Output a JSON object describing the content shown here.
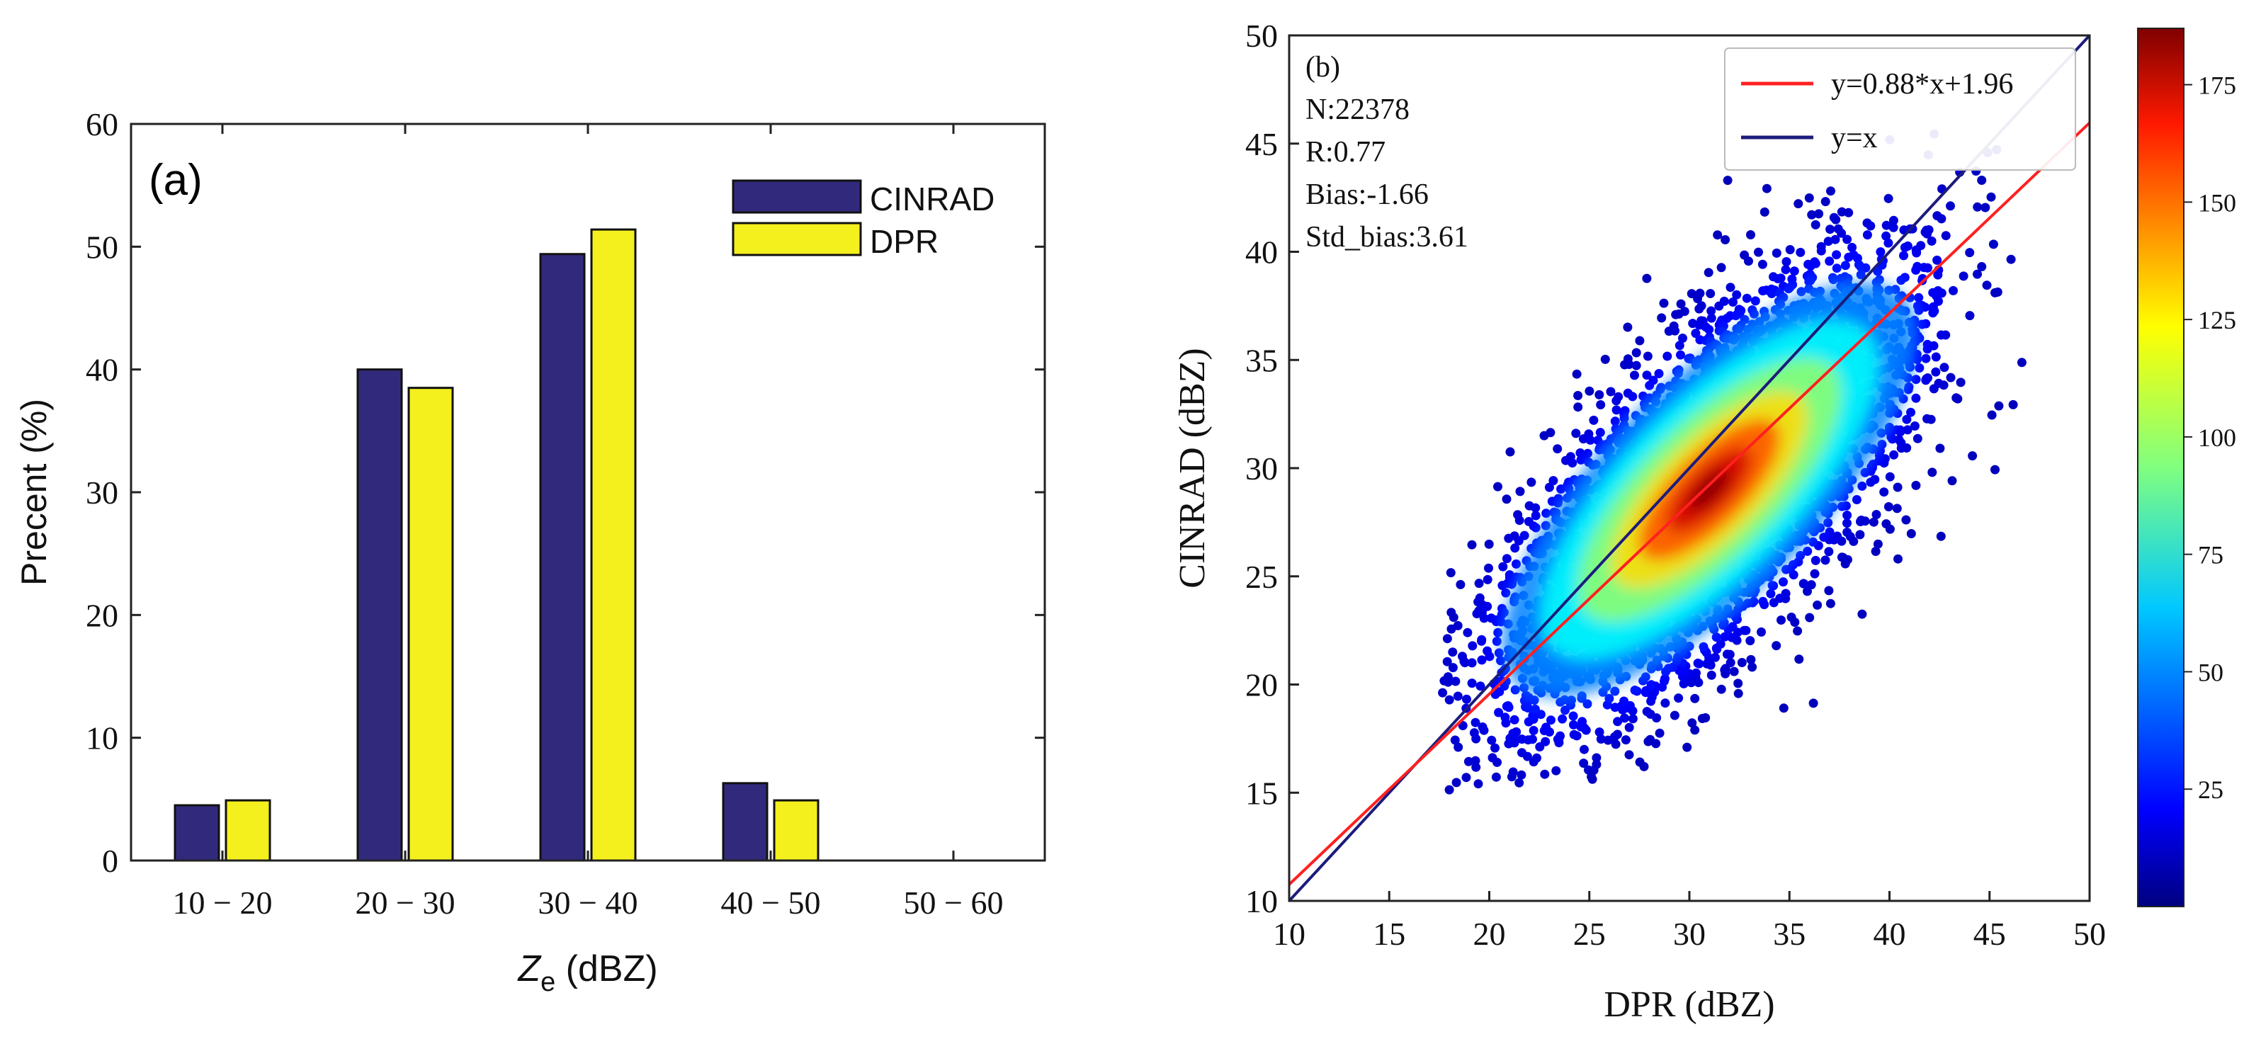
{
  "chart_data": [
    {
      "panel": "(a)",
      "type": "bar",
      "categories": [
        "10 − 20",
        "20 − 30",
        "30 − 40",
        "40 − 50",
        "50 − 60"
      ],
      "series": [
        {
          "name": "CINRAD",
          "color": "#312a7c",
          "values": [
            4.5,
            40.0,
            49.4,
            6.3,
            0.0
          ]
        },
        {
          "name": "DPR",
          "color": "#f4f01d",
          "values": [
            4.9,
            38.5,
            51.4,
            4.9,
            0.0
          ]
        }
      ],
      "xlabel_main": "Z",
      "xlabel_sub": "e",
      "xlabel_unit": " (dBZ)",
      "ylabel": "Precent (%)",
      "ylim": [
        0,
        60
      ],
      "yticks": [
        0,
        10,
        20,
        30,
        40,
        50,
        60
      ],
      "legend_position": "top-right"
    },
    {
      "panel": "(b)",
      "type": "scatter",
      "xlabel": "DPR (dBZ)",
      "ylabel": "CINRAD (dBZ)",
      "xlim": [
        10,
        50
      ],
      "ylim": [
        10,
        50
      ],
      "xticks": [
        10,
        15,
        20,
        25,
        30,
        35,
        40,
        45,
        50
      ],
      "yticks": [
        10,
        15,
        20,
        25,
        30,
        35,
        40,
        45,
        50
      ],
      "stats": [
        "N:22378",
        "R:0.77",
        "Bias:-1.66",
        "Std_bias:3.61"
      ],
      "fit_line": {
        "label": "y=0.88*x+1.96",
        "color": "#ff2020",
        "slope": 0.88,
        "intercept": 1.96
      },
      "identity_line": {
        "label": "y=x",
        "color": "#1c1c7c",
        "slope": 1,
        "intercept": 0
      },
      "density_cloud": {
        "center": [
          31,
          29
        ],
        "major_axis_slope": 1.0,
        "sd_major": 6.2,
        "sd_minor": 2.4,
        "x_min": 17.5,
        "y_min": 15
      },
      "colorbar": {
        "min": 0,
        "max": 187,
        "ticks": [
          25,
          50,
          75,
          100,
          125,
          150,
          175
        ]
      },
      "legend_position": "top-right"
    }
  ]
}
